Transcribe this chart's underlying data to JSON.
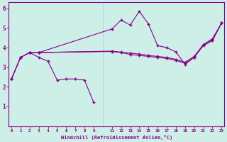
{
  "xlabel": "Windchill (Refroidissement éolien,°C)",
  "bg_color": "#ceeee8",
  "line_color": "#880088",
  "xlim": [
    -0.3,
    23.3
  ],
  "ylim": [
    0,
    6.3
  ],
  "xtick_vals": [
    0,
    1,
    2,
    3,
    4,
    5,
    6,
    7,
    8,
    9,
    11,
    12,
    13,
    14,
    15,
    16,
    17,
    18,
    19,
    20,
    21,
    22,
    23
  ],
  "yticks": [
    1,
    2,
    3,
    4,
    5,
    6
  ],
  "line1_x": [
    0,
    1,
    2,
    3,
    4,
    5,
    6,
    7,
    8,
    9
  ],
  "line1_y": [
    2.4,
    3.5,
    3.75,
    3.5,
    3.3,
    2.35,
    2.4,
    2.4,
    2.35,
    1.2
  ],
  "line2_x": [
    0,
    1,
    2,
    3,
    11,
    12,
    13,
    14,
    15,
    16,
    17,
    18,
    19,
    20,
    21,
    22,
    23
  ],
  "line2_y": [
    2.4,
    3.5,
    3.75,
    3.75,
    3.8,
    3.75,
    3.65,
    3.6,
    3.55,
    3.5,
    3.45,
    3.35,
    3.2,
    3.5,
    4.1,
    4.35,
    5.25
  ],
  "line3_x": [
    3,
    11,
    12,
    13,
    14,
    15,
    16,
    17,
    18,
    19,
    20,
    21,
    22,
    23
  ],
  "line3_y": [
    3.75,
    4.95,
    5.4,
    5.15,
    5.85,
    5.2,
    4.1,
    4.0,
    3.78,
    3.15,
    3.5,
    4.15,
    4.45,
    5.25
  ],
  "line4_x": [
    0,
    1,
    2,
    3,
    11,
    12,
    13,
    14,
    15,
    16,
    17,
    18,
    19,
    20,
    21,
    22,
    23
  ],
  "line4_y": [
    2.4,
    3.5,
    3.75,
    3.75,
    3.82,
    3.77,
    3.72,
    3.67,
    3.6,
    3.55,
    3.5,
    3.4,
    3.25,
    3.55,
    4.15,
    4.4,
    5.25
  ]
}
